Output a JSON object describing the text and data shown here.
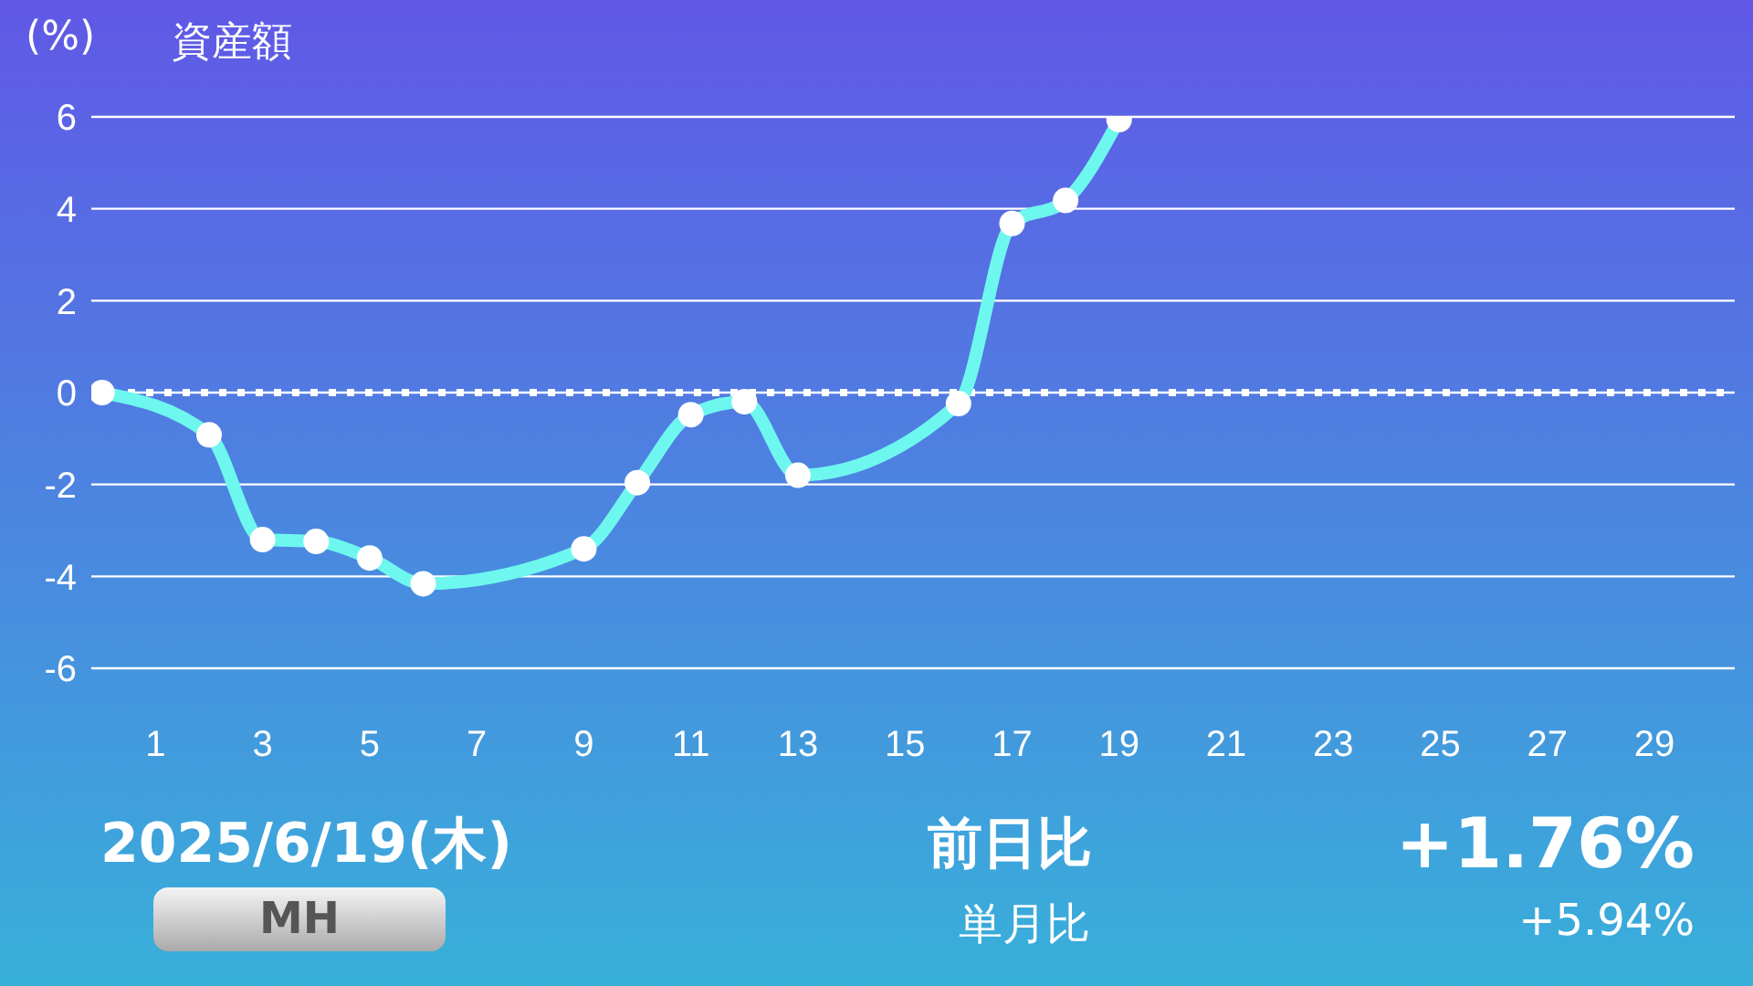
{
  "chart_data": {
    "type": "line",
    "title": "資産額",
    "ylabel": "(%)",
    "x": [
      0,
      2,
      3,
      4,
      5,
      6,
      9,
      10,
      11,
      12,
      13,
      16,
      17,
      18,
      19
    ],
    "series": [
      {
        "color": "#6ef7ee",
        "values": [
          0,
          -0.92,
          -3.2,
          -3.24,
          -3.6,
          -4.16,
          -3.4,
          -1.96,
          -0.48,
          -0.2,
          -1.8,
          -0.24,
          3.68,
          4.18,
          5.94
        ]
      }
    ],
    "xlim": [
      -0.2,
      30.5
    ],
    "xticks": [
      1,
      3,
      5,
      7,
      9,
      11,
      13,
      15,
      17,
      19,
      21,
      23,
      25,
      27,
      29
    ],
    "ylim": [
      -6,
      6
    ],
    "yticks": [
      -6,
      -4,
      -2,
      0,
      2,
      4,
      6
    ],
    "grid": "y",
    "marker": "circle",
    "line_style": "solid",
    "legend": false,
    "ref_lines": [
      {
        "axis": "y",
        "value": 0,
        "color": "#ffffff",
        "line_style": "dotted"
      }
    ],
    "annotations": [
      "2025/6/19(木)",
      "MH",
      "前日比",
      "単月比",
      "+1.76%",
      "+5.94%"
    ]
  }
}
